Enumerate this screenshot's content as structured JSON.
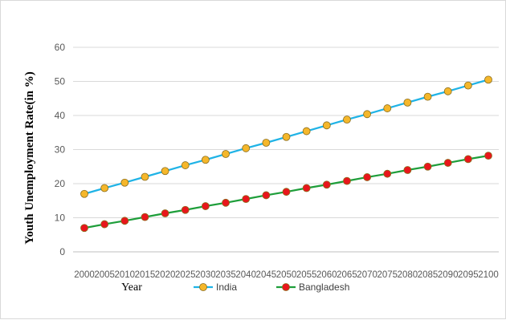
{
  "chart_data": {
    "type": "line",
    "title": "",
    "xlabel": "Year",
    "ylabel": "Youth Unemployment Rate(in %)",
    "ylim": [
      0,
      60
    ],
    "yticks": [
      0,
      10,
      20,
      30,
      40,
      50,
      60
    ],
    "grid": "horizontal",
    "legend_position": "bottom",
    "x": [
      2000,
      2005,
      2010,
      2015,
      2020,
      2025,
      2030,
      2035,
      2040,
      2045,
      2050,
      2055,
      2060,
      2065,
      2070,
      2075,
      2080,
      2085,
      2090,
      2095,
      2100
    ],
    "x_tick_labels": [
      "2000",
      "2005",
      "2010",
      "2015",
      "2020",
      "2025",
      "2030",
      "2035",
      "2040",
      "2045",
      "2050",
      "2055",
      "2060",
      "2065",
      "2070",
      "2075",
      "2080",
      "2085",
      "2090",
      "2095",
      "2100"
    ],
    "series": [
      {
        "name": "India",
        "line_color": "#1fb3e6",
        "marker_color": "#f5b72b",
        "values": [
          17.0,
          18.7,
          20.3,
          22.0,
          23.7,
          25.4,
          27.0,
          28.7,
          30.4,
          32.0,
          33.7,
          35.4,
          37.1,
          38.8,
          40.4,
          42.1,
          43.8,
          45.5,
          47.1,
          48.8,
          50.5
        ]
      },
      {
        "name": "Bangladesh",
        "line_color": "#1e9e3a",
        "marker_color": "#e8161c",
        "values": [
          7.0,
          8.1,
          9.1,
          10.2,
          11.3,
          12.3,
          13.4,
          14.4,
          15.5,
          16.6,
          17.6,
          18.7,
          19.7,
          20.8,
          21.9,
          22.9,
          24.0,
          25.0,
          26.1,
          27.2,
          28.2
        ]
      }
    ]
  }
}
